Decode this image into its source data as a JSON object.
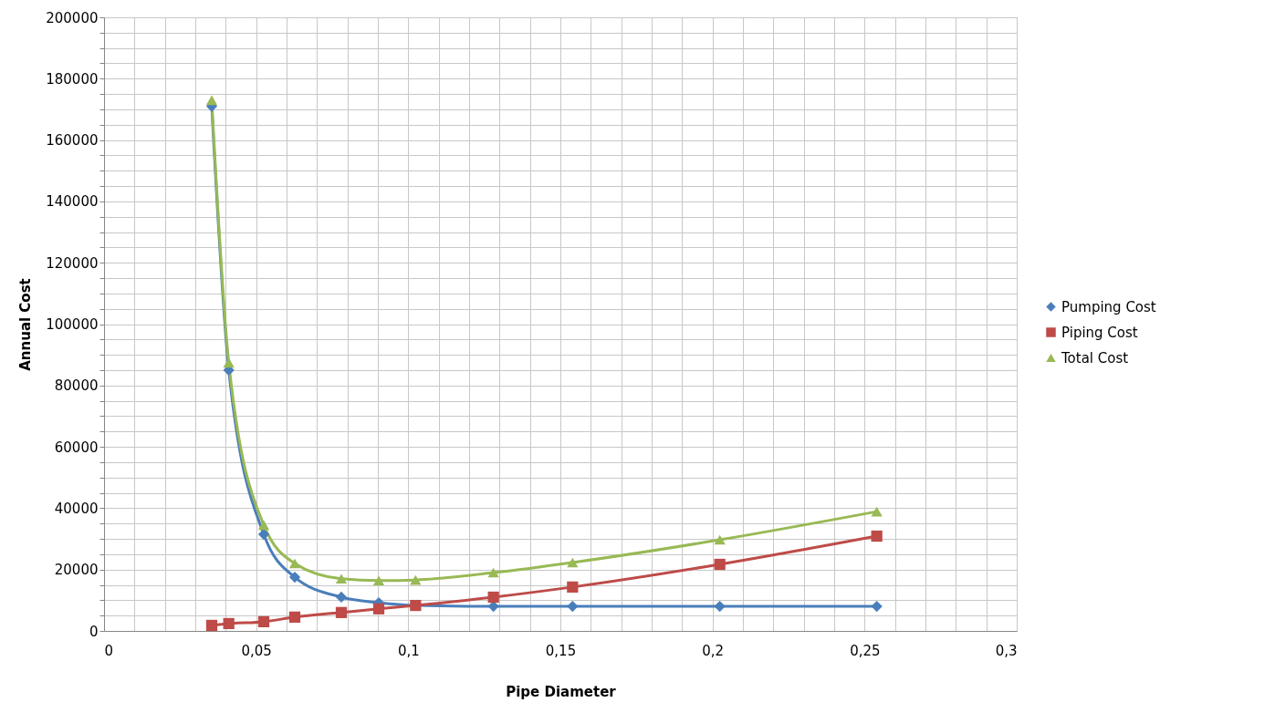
{
  "chart_data": {
    "type": "line",
    "xlabel": "Pipe Diameter",
    "ylabel": "Annual Cost",
    "xlim": [
      0,
      0.3
    ],
    "xticks": [
      0,
      {
        "value": 0.01,
        "label": null
      },
      {
        "value": 0.02,
        "label": null
      },
      {
        "value": 0.03,
        "label": null
      },
      {
        "value": 0.04,
        "label": null
      },
      {
        "value": 0.05,
        "label": "0,05"
      },
      {
        "value": 0.06,
        "label": null
      },
      {
        "value": 0.07,
        "label": null
      },
      {
        "value": 0.08,
        "label": null
      },
      {
        "value": 0.09,
        "label": null
      },
      {
        "value": 0.1,
        "label": "0,1"
      },
      {
        "value": 0.11,
        "label": null
      },
      {
        "value": 0.12,
        "label": null
      },
      {
        "value": 0.13,
        "label": null
      },
      {
        "value": 0.14,
        "label": null
      },
      {
        "value": 0.15,
        "label": "0,15"
      },
      {
        "value": 0.16,
        "label": null
      },
      {
        "value": 0.17,
        "label": null
      },
      {
        "value": 0.18,
        "label": null
      },
      {
        "value": 0.19,
        "label": null
      },
      {
        "value": 0.2,
        "label": "0,2"
      },
      {
        "value": 0.21,
        "label": null
      },
      {
        "value": 0.22,
        "label": null
      },
      {
        "value": 0.23,
        "label": null
      },
      {
        "value": 0.24,
        "label": null
      },
      {
        "value": 0.25,
        "label": "0,25"
      },
      {
        "value": 0.26,
        "label": null
      },
      {
        "value": 0.27,
        "label": null
      },
      {
        "value": 0.28,
        "label": null
      },
      {
        "value": 0.29,
        "label": null
      },
      {
        "value": 0.3,
        "label": "0,3"
      }
    ],
    "ylim": [
      0,
      200000
    ],
    "yticks": [
      0,
      {
        "value": 5000,
        "label": null
      },
      {
        "value": 10000,
        "label": null
      },
      {
        "value": 15000,
        "label": null
      },
      20000,
      {
        "value": 25000,
        "label": null
      },
      {
        "value": 30000,
        "label": null
      },
      {
        "value": 35000,
        "label": null
      },
      40000,
      {
        "value": 45000,
        "label": null
      },
      {
        "value": 50000,
        "label": null
      },
      {
        "value": 55000,
        "label": null
      },
      60000,
      {
        "value": 65000,
        "label": null
      },
      {
        "value": 70000,
        "label": null
      },
      {
        "value": 75000,
        "label": null
      },
      80000,
      {
        "value": 85000,
        "label": null
      },
      {
        "value": 90000,
        "label": null
      },
      {
        "value": 95000,
        "label": null
      },
      100000,
      {
        "value": 105000,
        "label": null
      },
      {
        "value": 110000,
        "label": null
      },
      {
        "value": 115000,
        "label": null
      },
      120000,
      {
        "value": 125000,
        "label": null
      },
      {
        "value": 130000,
        "label": null
      },
      {
        "value": 135000,
        "label": null
      },
      140000,
      {
        "value": 145000,
        "label": null
      },
      {
        "value": 150000,
        "label": null
      },
      {
        "value": 155000,
        "label": null
      },
      160000,
      {
        "value": 165000,
        "label": null
      },
      {
        "value": 170000,
        "label": null
      },
      {
        "value": 175000,
        "label": null
      },
      180000,
      {
        "value": 185000,
        "label": null
      },
      {
        "value": 190000,
        "label": null
      },
      {
        "value": 195000,
        "label": null
      },
      200000
    ],
    "x": [
      0.0354,
      0.041,
      0.0525,
      0.0627,
      0.078,
      0.0903,
      0.1024,
      0.128,
      0.154,
      0.2024,
      0.254
    ],
    "grid": true,
    "legend": "right",
    "series": [
      {
        "name": "Pumping Cost",
        "color": "#4a7ebb",
        "marker": "diamond",
        "values": [
          171000,
          85000,
          31500,
          17500,
          11000,
          9200,
          8300,
          8000,
          8000,
          8000,
          8000
        ]
      },
      {
        "name": "Piping Cost",
        "color": "#be4b48",
        "marker": "square",
        "values": [
          1800,
          2400,
          3000,
          4500,
          6000,
          7200,
          8300,
          11000,
          14300,
          21700,
          30900
        ]
      },
      {
        "name": "Total Cost",
        "color": "#98b954",
        "marker": "triangle",
        "values": [
          173000,
          87400,
          34500,
          22000,
          17000,
          16400,
          16600,
          19000,
          22300,
          29700,
          38900
        ]
      }
    ]
  }
}
